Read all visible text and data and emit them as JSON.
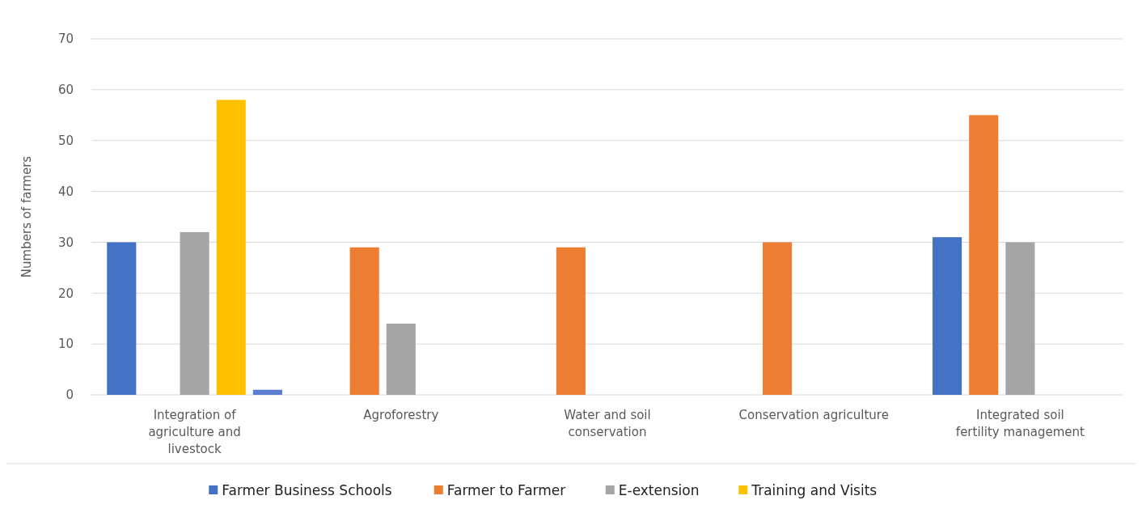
{
  "chart_data": {
    "type": "bar",
    "ylabel": "Numbers of farmers",
    "categories": [
      "Integration of agriculture and livestock",
      "Agroforestry",
      "Water and soil conservation",
      "Conservation agriculture",
      "Integrated soil fertility management"
    ],
    "series": [
      {
        "name": "Farmer Business Schools",
        "color": "#4472c4",
        "values": [
          30,
          null,
          null,
          null,
          31
        ]
      },
      {
        "name": "Farmer to Farmer",
        "color": "#ed7d31",
        "values": [
          null,
          29,
          29,
          30,
          55
        ]
      },
      {
        "name": "E-extension",
        "color": "#a5a5a5",
        "values": [
          32,
          14,
          null,
          null,
          30
        ]
      },
      {
        "name": "Training and Visits",
        "color": "#ffc000",
        "values": [
          58,
          null,
          null,
          null,
          null
        ]
      },
      {
        "color": "#5b7fd0",
        "values": [
          1,
          null,
          null,
          null,
          null
        ]
      }
    ],
    "ylim": [
      0,
      70
    ],
    "yticks": [
      0,
      10,
      20,
      30,
      40,
      50,
      60,
      70
    ],
    "grid": "y",
    "legend": "bottom"
  }
}
